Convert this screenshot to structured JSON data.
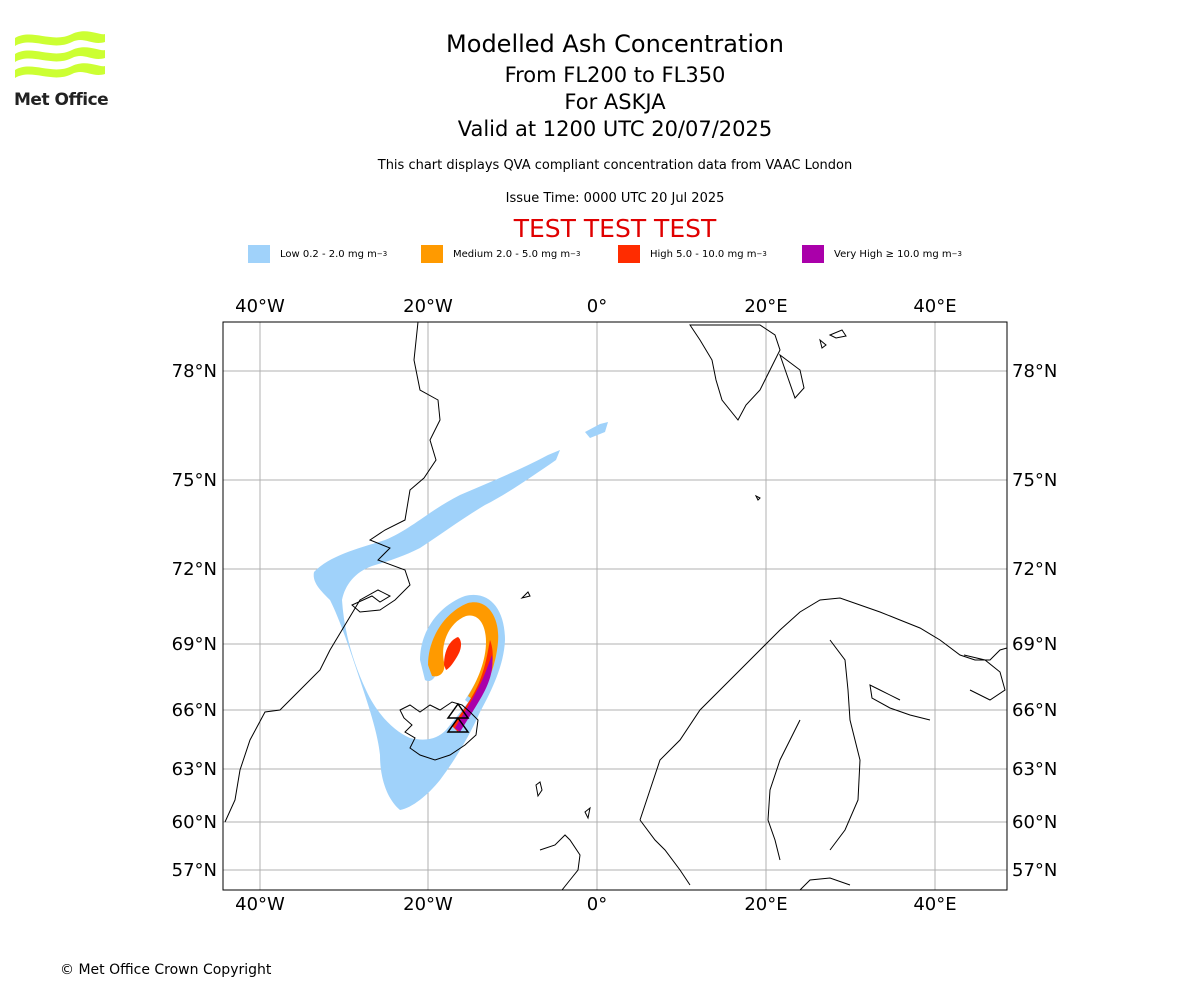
{
  "logo": {
    "text": "Met Office",
    "color": "#ccff33"
  },
  "header": {
    "title": "Modelled Ash Concentration",
    "range": "From FL200 to FL350",
    "volcano": "For ASKJA",
    "valid": "Valid at 1200 UTC 20/07/2025",
    "subtitle": "This chart displays QVA compliant concentration data from VAAC London",
    "issue_time": "Issue Time: 0000 UTC 20 Jul 2025",
    "test_banner": "TEST TEST TEST"
  },
  "legend": [
    {
      "label": "Low 0.2 - 2.0 mg m",
      "unit_exp": "−3",
      "color": "#a0d2fa"
    },
    {
      "label": "Medium 2.0 - 5.0 mg m",
      "unit_exp": "−3",
      "color": "#ff9a00"
    },
    {
      "label": "High 5.0 - 10.0 mg m",
      "unit_exp": "−3",
      "color": "#ff2c00"
    },
    {
      "label": "Very High  ≥  10.0 mg m",
      "unit_exp": "−3",
      "color": "#aa00aa"
    }
  ],
  "map": {
    "lon_ticks": [
      "40°W",
      "20°W",
      "0°",
      "20°E",
      "40°E"
    ],
    "lat_ticks": [
      "78°N",
      "75°N",
      "72°N",
      "69°N",
      "66°N",
      "63°N",
      "60°N",
      "57°N"
    ]
  },
  "footer": {
    "copyright": "© Met Office Crown Copyright"
  }
}
